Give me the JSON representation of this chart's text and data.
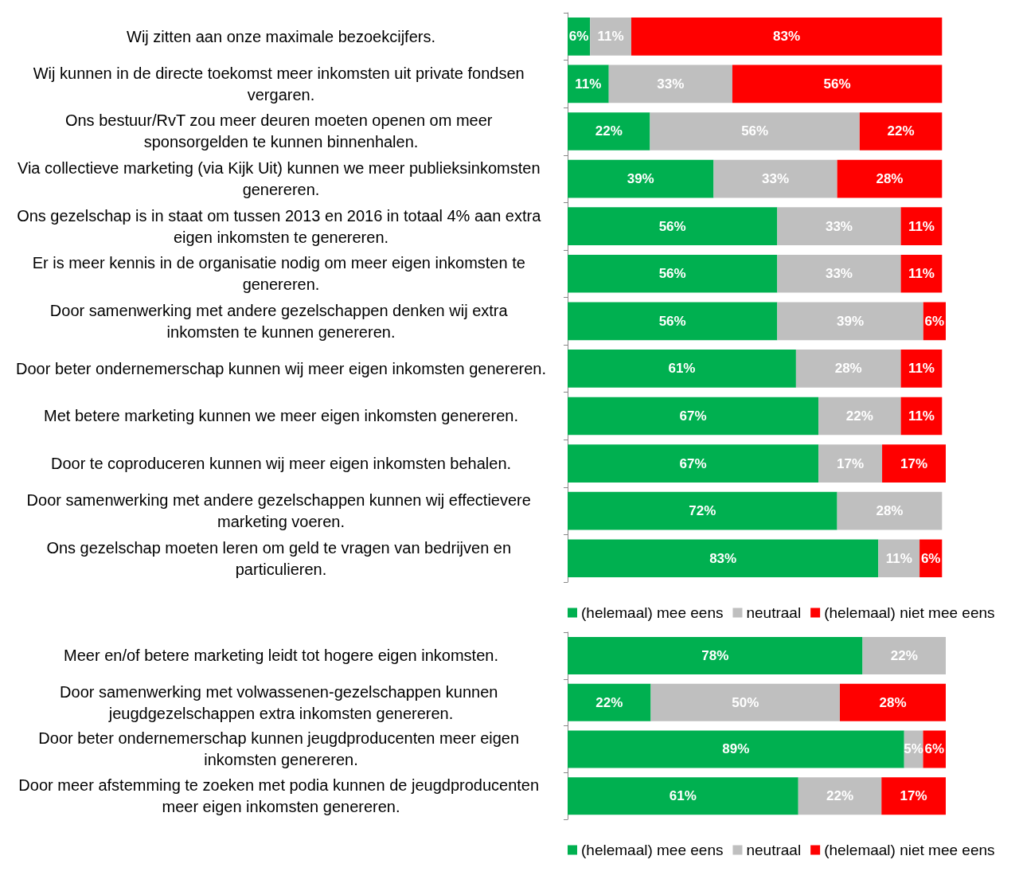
{
  "chart_data": [
    {
      "type": "bar",
      "orientation": "horizontal",
      "stacked": true,
      "legend": "bottom",
      "tick_labels": "y",
      "categories": [
        "Wij zitten aan onze maximale bezoekcijfers.",
        "Wij kunnen in de directe toekomst meer inkomsten uit private fondsen vergaren.",
        "Ons bestuur/RvT zou meer deuren moeten openen om meer sponsorgelden te kunnen binnenhalen.",
        "Via collectieve marketing (via Kijk Uit) kunnen we meer publieksinkomsten genereren.",
        "Ons gezelschap is in staat om tussen 2013 en 2016 in totaal 4% aan extra eigen inkomsten te genereren.",
        "Er is meer kennis in de organisatie nodig om meer eigen inkomsten te genereren.",
        "Door samenwerking met andere gezelschappen denken wij extra inkomsten te kunnen genereren.",
        "Door beter ondernemerschap kunnen wij meer eigen inkomsten genereren.",
        "Met betere marketing kunnen we meer eigen inkomsten genereren.",
        "Door te coproduceren kunnen wij meer eigen inkomsten behalen.",
        "Door samenwerking met andere gezelschappen kunnen wij effectievere marketing voeren.",
        "Ons gezelschap moeten leren om geld te vragen van bedrijven en particulieren."
      ],
      "series": [
        {
          "name": "(helemaal) mee eens",
          "color": "#00b050",
          "values": [
            6,
            11,
            22,
            39,
            56,
            56,
            56,
            61,
            67,
            67,
            72,
            83
          ],
          "value_labels": [
            "6%",
            "11%",
            "22%",
            "39%",
            "56%",
            "56%",
            "56%",
            "61%",
            "67%",
            "67%",
            "72%",
            "83%"
          ]
        },
        {
          "name": "neutraal",
          "color": "#bfbfbf",
          "values": [
            11,
            33,
            56,
            33,
            33,
            33,
            39,
            28,
            22,
            17,
            28,
            11
          ],
          "value_labels": [
            "11%",
            "33%",
            "56%",
            "33%",
            "33%",
            "33%",
            "39%",
            "28%",
            "22%",
            "17%",
            "28%",
            "11%"
          ]
        },
        {
          "name": "(helemaal) niet mee eens",
          "color": "#ff0000",
          "values": [
            83,
            56,
            22,
            28,
            11,
            11,
            6,
            11,
            11,
            17,
            null,
            6
          ],
          "value_labels": [
            "83%",
            "56%",
            "22%",
            "28%",
            "11%",
            "11%",
            "6%",
            "11%",
            "11%",
            "17%",
            null,
            "6%"
          ]
        }
      ]
    },
    {
      "type": "bar",
      "orientation": "horizontal",
      "stacked": true,
      "legend": "bottom",
      "tick_labels": "y",
      "categories": [
        "Meer en/of betere marketing leidt tot hogere eigen inkomsten.",
        "Door samenwerking met volwassenen-gezelschappen kunnen jeugdgezelschappen extra inkomsten genereren.",
        "Door beter ondernemerschap kunnen jeugdproducenten meer eigen inkomsten genereren.",
        "Door meer afstemming te zoeken met podia kunnen de jeugdproducenten meer eigen inkomsten genereren."
      ],
      "series": [
        {
          "name": "(helemaal) mee eens",
          "color": "#00b050",
          "values": [
            78,
            22,
            89,
            61
          ],
          "value_labels": [
            "78%",
            "22%",
            "89%",
            "61%"
          ]
        },
        {
          "name": "neutraal",
          "color": "#bfbfbf",
          "values": [
            22,
            50,
            5,
            22
          ],
          "value_labels": [
            "22%",
            "50%",
            "5%",
            "22%"
          ]
        },
        {
          "name": "(helemaal) niet mee eens",
          "color": "#ff0000",
          "values": [
            null,
            28,
            6,
            17
          ],
          "value_labels": [
            null,
            "28%",
            "6%",
            "17%"
          ]
        }
      ]
    }
  ]
}
